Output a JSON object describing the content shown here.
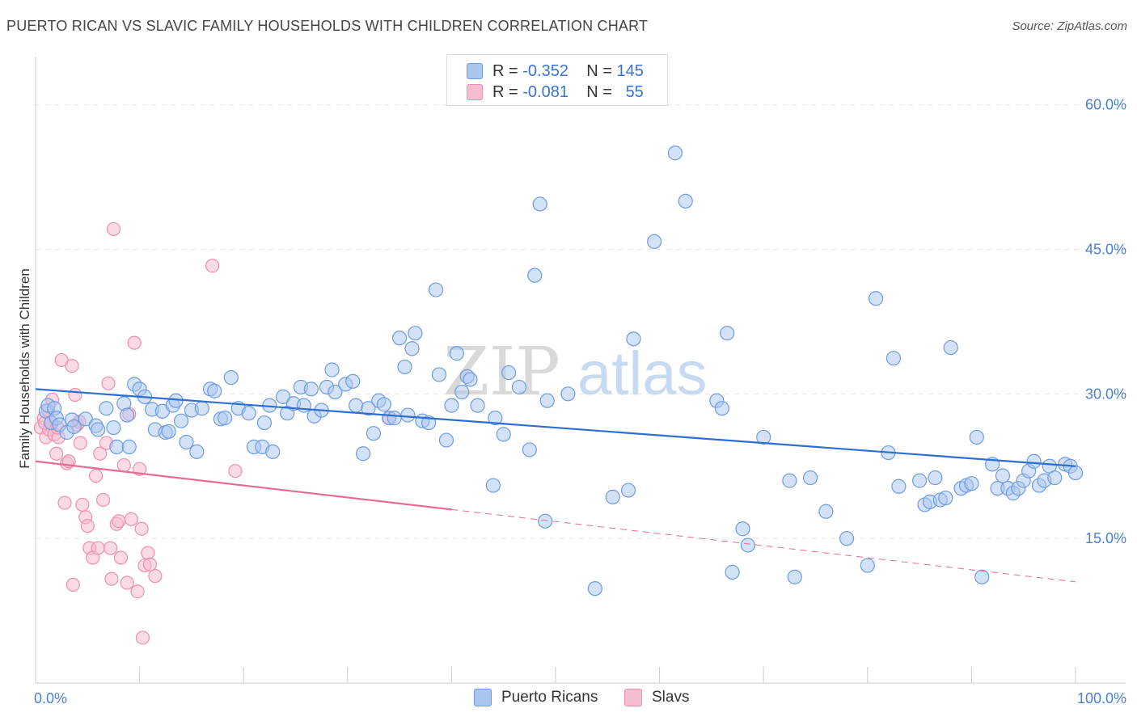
{
  "title": "PUERTO RICAN VS SLAVIC FAMILY HOUSEHOLDS WITH CHILDREN CORRELATION CHART",
  "source": "Source: ZipAtlas.com",
  "watermark": {
    "zip": "ZIP",
    "atlas": "atlas"
  },
  "colors": {
    "blue_fill": "#a9c6ef",
    "blue_stroke": "#6d9be0",
    "blue_line": "#2d6fd0",
    "pink_fill": "#f6bcd0",
    "pink_stroke": "#ee8fb0",
    "pink_line": "#e86b97",
    "axis_text": "#4a7fd6",
    "grid": "#e6e6e6"
  },
  "legend": {
    "rows": [
      {
        "r_label": "R =",
        "r_value": "-0.352",
        "n_label": "N =",
        "n_value": "145",
        "color": "#a9c6ef"
      },
      {
        "r_label": "R =",
        "r_value": "-0.081",
        "n_label": "N =",
        "n_value": "55",
        "color": "#f6bcd0"
      }
    ]
  },
  "bottom_legend": [
    {
      "label": "Puerto Ricans",
      "color": "#a9c6ef"
    },
    {
      "label": "Slavs",
      "color": "#f6bcd0"
    }
  ],
  "chart_data": {
    "type": "scatter",
    "title": "PUERTO RICAN VS SLAVIC FAMILY HOUSEHOLDS WITH CHILDREN CORRELATION CHART",
    "xlabel": "",
    "ylabel": "Family Households with Children",
    "xlim": [
      0,
      100
    ],
    "ylim": [
      0,
      65
    ],
    "x_tick_labels": [
      "0.0%",
      "100.0%"
    ],
    "y_ticks": [
      15,
      30,
      45,
      60
    ],
    "y_tick_labels": [
      "15.0%",
      "30.0%",
      "45.0%",
      "60.0%"
    ],
    "grid": true,
    "legend_position": "top-center",
    "series": [
      {
        "name": "Puerto Ricans",
        "trend": {
          "x": [
            0,
            100
          ],
          "y": [
            30.5,
            22.5
          ]
        },
        "points": [
          [
            1.0,
            28.2
          ],
          [
            1.2,
            28.8
          ],
          [
            1.5,
            27.0
          ],
          [
            1.8,
            28.5
          ],
          [
            2.0,
            27.5
          ],
          [
            2.3,
            26.8
          ],
          [
            3.5,
            27.3
          ],
          [
            3.0,
            26.0
          ],
          [
            3.7,
            26.6
          ],
          [
            4.8,
            27.4
          ],
          [
            5.8,
            26.7
          ],
          [
            6.0,
            26.3
          ],
          [
            6.8,
            28.5
          ],
          [
            7.5,
            26.5
          ],
          [
            7.8,
            24.5
          ],
          [
            8.5,
            29.0
          ],
          [
            8.8,
            27.8
          ],
          [
            9.0,
            24.5
          ],
          [
            9.5,
            31.0
          ],
          [
            10.0,
            30.5
          ],
          [
            10.5,
            29.7
          ],
          [
            11.2,
            28.4
          ],
          [
            11.5,
            26.3
          ],
          [
            12.2,
            28.2
          ],
          [
            12.5,
            26.0
          ],
          [
            12.8,
            26.1
          ],
          [
            13.2,
            28.8
          ],
          [
            13.5,
            29.3
          ],
          [
            14.0,
            27.2
          ],
          [
            14.5,
            25.0
          ],
          [
            15.0,
            28.3
          ],
          [
            15.5,
            24.0
          ],
          [
            16.0,
            28.5
          ],
          [
            16.8,
            30.5
          ],
          [
            17.2,
            30.3
          ],
          [
            17.8,
            27.4
          ],
          [
            18.2,
            27.5
          ],
          [
            18.8,
            31.7
          ],
          [
            19.5,
            28.5
          ],
          [
            20.5,
            28.0
          ],
          [
            21.0,
            24.5
          ],
          [
            21.8,
            24.5
          ],
          [
            22.0,
            27.0
          ],
          [
            22.5,
            28.8
          ],
          [
            22.8,
            24.0
          ],
          [
            23.8,
            29.7
          ],
          [
            24.2,
            28.0
          ],
          [
            24.8,
            29.0
          ],
          [
            25.5,
            30.7
          ],
          [
            25.8,
            28.8
          ],
          [
            26.5,
            30.5
          ],
          [
            26.8,
            27.7
          ],
          [
            27.5,
            28.3
          ],
          [
            28.0,
            30.7
          ],
          [
            28.5,
            32.5
          ],
          [
            28.8,
            30.2
          ],
          [
            29.8,
            31.0
          ],
          [
            30.5,
            31.3
          ],
          [
            30.8,
            28.8
          ],
          [
            31.5,
            23.8
          ],
          [
            32.0,
            28.5
          ],
          [
            32.5,
            25.9
          ],
          [
            33.0,
            29.3
          ],
          [
            33.5,
            28.9
          ],
          [
            34.0,
            27.5
          ],
          [
            34.5,
            27.5
          ],
          [
            35.0,
            35.8
          ],
          [
            35.5,
            32.8
          ],
          [
            35.8,
            27.8
          ],
          [
            36.2,
            34.7
          ],
          [
            36.5,
            36.3
          ],
          [
            37.2,
            27.2
          ],
          [
            37.8,
            27.0
          ],
          [
            38.5,
            40.8
          ],
          [
            38.8,
            32.0
          ],
          [
            39.5,
            25.2
          ],
          [
            40.0,
            28.8
          ],
          [
            40.5,
            34.2
          ],
          [
            41.0,
            30.2
          ],
          [
            41.5,
            31.8
          ],
          [
            41.8,
            31.5
          ],
          [
            42.5,
            28.8
          ],
          [
            44.0,
            20.5
          ],
          [
            44.2,
            27.5
          ],
          [
            45.0,
            25.8
          ],
          [
            45.5,
            32.2
          ],
          [
            46.5,
            30.7
          ],
          [
            47.5,
            24.2
          ],
          [
            48.0,
            42.3
          ],
          [
            48.5,
            49.7
          ],
          [
            49.0,
            16.8
          ],
          [
            49.2,
            29.3
          ],
          [
            51.2,
            30.0
          ],
          [
            53.8,
            9.8
          ],
          [
            55.5,
            19.3
          ],
          [
            57.0,
            20.0
          ],
          [
            57.5,
            35.7
          ],
          [
            59.5,
            45.8
          ],
          [
            61.5,
            55.0
          ],
          [
            62.5,
            50.0
          ],
          [
            65.5,
            29.3
          ],
          [
            66.0,
            28.5
          ],
          [
            66.5,
            36.3
          ],
          [
            67.0,
            11.5
          ],
          [
            68.0,
            16.0
          ],
          [
            68.5,
            14.3
          ],
          [
            70.0,
            25.5
          ],
          [
            72.5,
            21.0
          ],
          [
            73.0,
            11.0
          ],
          [
            74.5,
            21.3
          ],
          [
            76.0,
            17.8
          ],
          [
            78.0,
            15.0
          ],
          [
            80.0,
            12.2
          ],
          [
            80.8,
            39.9
          ],
          [
            82.0,
            23.9
          ],
          [
            82.5,
            33.7
          ],
          [
            83.0,
            20.4
          ],
          [
            85.0,
            21.0
          ],
          [
            85.5,
            18.5
          ],
          [
            86.0,
            18.8
          ],
          [
            86.5,
            21.3
          ],
          [
            87.0,
            19.0
          ],
          [
            87.5,
            19.2
          ],
          [
            88.0,
            34.8
          ],
          [
            89.0,
            20.2
          ],
          [
            89.5,
            20.5
          ],
          [
            90.5,
            25.5
          ],
          [
            90.0,
            20.7
          ],
          [
            91.0,
            11.0
          ],
          [
            92.0,
            22.7
          ],
          [
            92.5,
            20.2
          ],
          [
            93.0,
            21.5
          ],
          [
            93.5,
            20.2
          ],
          [
            94.0,
            19.7
          ],
          [
            94.5,
            20.2
          ],
          [
            95.0,
            21.0
          ],
          [
            95.5,
            22.0
          ],
          [
            96.0,
            23.0
          ],
          [
            96.5,
            20.5
          ],
          [
            97.0,
            21.0
          ],
          [
            97.5,
            22.5
          ],
          [
            98.0,
            21.3
          ],
          [
            99.0,
            22.7
          ],
          [
            99.5,
            22.5
          ],
          [
            100.0,
            21.8
          ]
        ]
      },
      {
        "name": "Slavs",
        "trend": {
          "x": [
            0,
            40,
            100
          ],
          "y": [
            23.0,
            18.0,
            10.5
          ],
          "solid_until_x": 40
        },
        "points": [
          [
            0.5,
            26.5
          ],
          [
            0.8,
            27.5
          ],
          [
            1.0,
            25.5
          ],
          [
            1.3,
            26.3
          ],
          [
            1.5,
            27.0
          ],
          [
            1.8,
            25.8
          ],
          [
            2.0,
            23.8
          ],
          [
            2.2,
            25.5
          ],
          [
            2.5,
            33.5
          ],
          [
            2.8,
            18.7
          ],
          [
            3.0,
            22.8
          ],
          [
            3.2,
            23.0
          ],
          [
            3.5,
            32.9
          ],
          [
            3.8,
            29.9
          ],
          [
            4.0,
            26.8
          ],
          [
            4.2,
            27.1
          ],
          [
            4.5,
            18.5
          ],
          [
            4.8,
            17.2
          ],
          [
            5.0,
            16.3
          ],
          [
            5.2,
            14.0
          ],
          [
            5.5,
            13.0
          ],
          [
            5.8,
            21.5
          ],
          [
            6.0,
            14.0
          ],
          [
            6.2,
            23.8
          ],
          [
            6.5,
            19.0
          ],
          [
            6.8,
            24.9
          ],
          [
            7.0,
            31.1
          ],
          [
            7.2,
            14.0
          ],
          [
            7.5,
            47.1
          ],
          [
            7.8,
            16.5
          ],
          [
            8.0,
            16.8
          ],
          [
            8.2,
            13.0
          ],
          [
            8.5,
            22.6
          ],
          [
            9.0,
            27.9
          ],
          [
            9.5,
            35.3
          ],
          [
            9.8,
            9.5
          ],
          [
            10.0,
            22.2
          ],
          [
            10.2,
            16.0
          ],
          [
            10.5,
            12.2
          ],
          [
            10.8,
            13.5
          ],
          [
            11.0,
            12.3
          ],
          [
            11.5,
            11.1
          ],
          [
            17.0,
            43.3
          ],
          [
            19.2,
            22.0
          ],
          [
            34.0,
            27.5
          ],
          [
            9.2,
            17.0
          ],
          [
            8.8,
            10.4
          ],
          [
            7.3,
            10.8
          ],
          [
            3.6,
            10.2
          ],
          [
            2.1,
            26.5
          ],
          [
            1.2,
            28.3
          ],
          [
            1.6,
            29.4
          ],
          [
            0.9,
            27.0
          ],
          [
            10.3,
            4.7
          ],
          [
            4.3,
            24.9
          ]
        ]
      }
    ]
  }
}
